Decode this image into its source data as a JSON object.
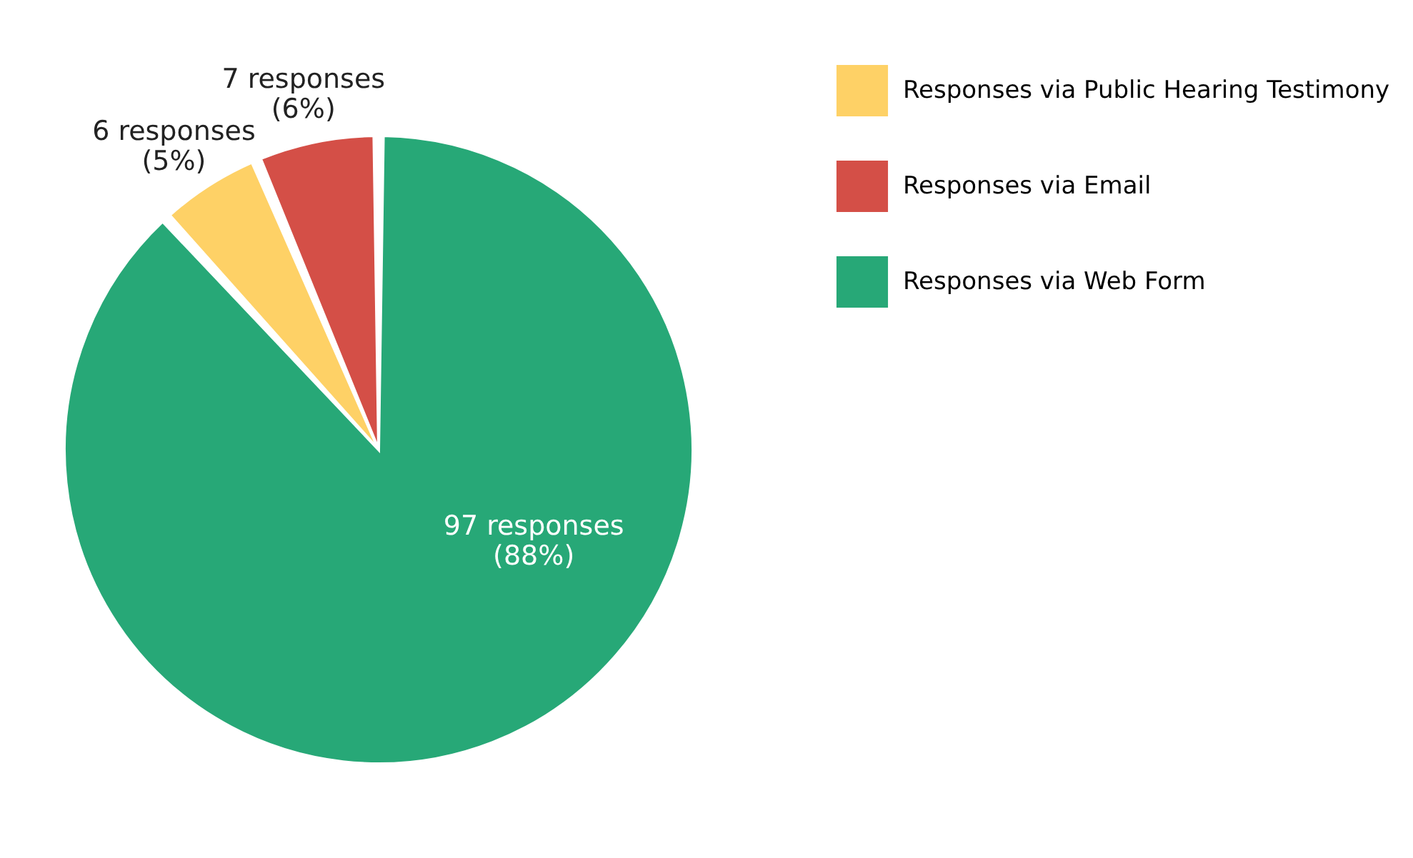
{
  "chart_data": {
    "type": "pie",
    "categories": [
      "Responses via Public Hearing Testimony",
      "Responses via Email",
      "Responses via Web Form"
    ],
    "values": [
      6,
      7,
      97
    ],
    "colors": [
      "#fed166",
      "#d44f47",
      "#27a877"
    ],
    "value_labels": [
      "6 responses\n(5%)",
      "7 responses\n(6%)",
      "97 responses\n(88%)"
    ],
    "legend": "right"
  }
}
